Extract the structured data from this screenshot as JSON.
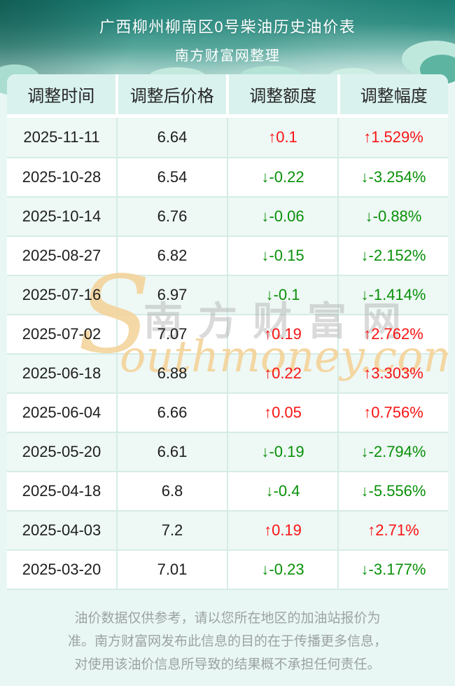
{
  "header": {
    "title": "广西柳州柳南区0号柴油历史油价表",
    "subtitle": "南方财富网整理"
  },
  "table": {
    "columns": [
      "调整时间",
      "调整后价格",
      "调整额度",
      "调整幅度"
    ],
    "rows": [
      {
        "date": "2025-11-11",
        "price": "6.64",
        "amount": "↑0.1",
        "percent": "↑1.529%",
        "direction": "up"
      },
      {
        "date": "2025-10-28",
        "price": "6.54",
        "amount": "↓-0.22",
        "percent": "↓-3.254%",
        "direction": "down"
      },
      {
        "date": "2025-10-14",
        "price": "6.76",
        "amount": "↓-0.06",
        "percent": "↓-0.88%",
        "direction": "down"
      },
      {
        "date": "2025-08-27",
        "price": "6.82",
        "amount": "↓-0.15",
        "percent": "↓-2.152%",
        "direction": "down"
      },
      {
        "date": "2025-07-16",
        "price": "6.97",
        "amount": "↓-0.1",
        "percent": "↓-1.414%",
        "direction": "down"
      },
      {
        "date": "2025-07-02",
        "price": "7.07",
        "amount": "↑0.19",
        "percent": "↑2.762%",
        "direction": "up"
      },
      {
        "date": "2025-06-18",
        "price": "6.88",
        "amount": "↑0.22",
        "percent": "↑3.303%",
        "direction": "up"
      },
      {
        "date": "2025-06-04",
        "price": "6.66",
        "amount": "↑0.05",
        "percent": "↑0.756%",
        "direction": "up"
      },
      {
        "date": "2025-05-20",
        "price": "6.61",
        "amount": "↓-0.19",
        "percent": "↓-2.794%",
        "direction": "down"
      },
      {
        "date": "2025-04-18",
        "price": "6.8",
        "amount": "↓-0.4",
        "percent": "↓-5.556%",
        "direction": "down"
      },
      {
        "date": "2025-04-03",
        "price": "7.2",
        "amount": "↑0.19",
        "percent": "↑2.71%",
        "direction": "up"
      },
      {
        "date": "2025-03-20",
        "price": "7.01",
        "amount": "↓-0.23",
        "percent": "↓-3.177%",
        "direction": "down"
      }
    ]
  },
  "watermark": {
    "initial": "S",
    "cn": "南方财富网",
    "en": "outhmoney.com"
  },
  "footer": {
    "lines": [
      "油价数据仅供参考，请以您所在地区的加油站报价为",
      "准。南方财富网发布此信息的目的在于传播更多信息，",
      "对使用该油价信息所导致的结果概不承担任何责任。"
    ]
  },
  "colors": {
    "accent_teal": "#1c7f74",
    "page_bg": "#e9f7f4",
    "header_cell_bg": "#d9f2ee",
    "row_alt_bg": "#eef8f5",
    "separator": "#d5ece7",
    "up_red": "#f81414",
    "down_green": "#089008",
    "footer_text": "#9ba3a2",
    "watermark_orange": "#f3d49c"
  }
}
